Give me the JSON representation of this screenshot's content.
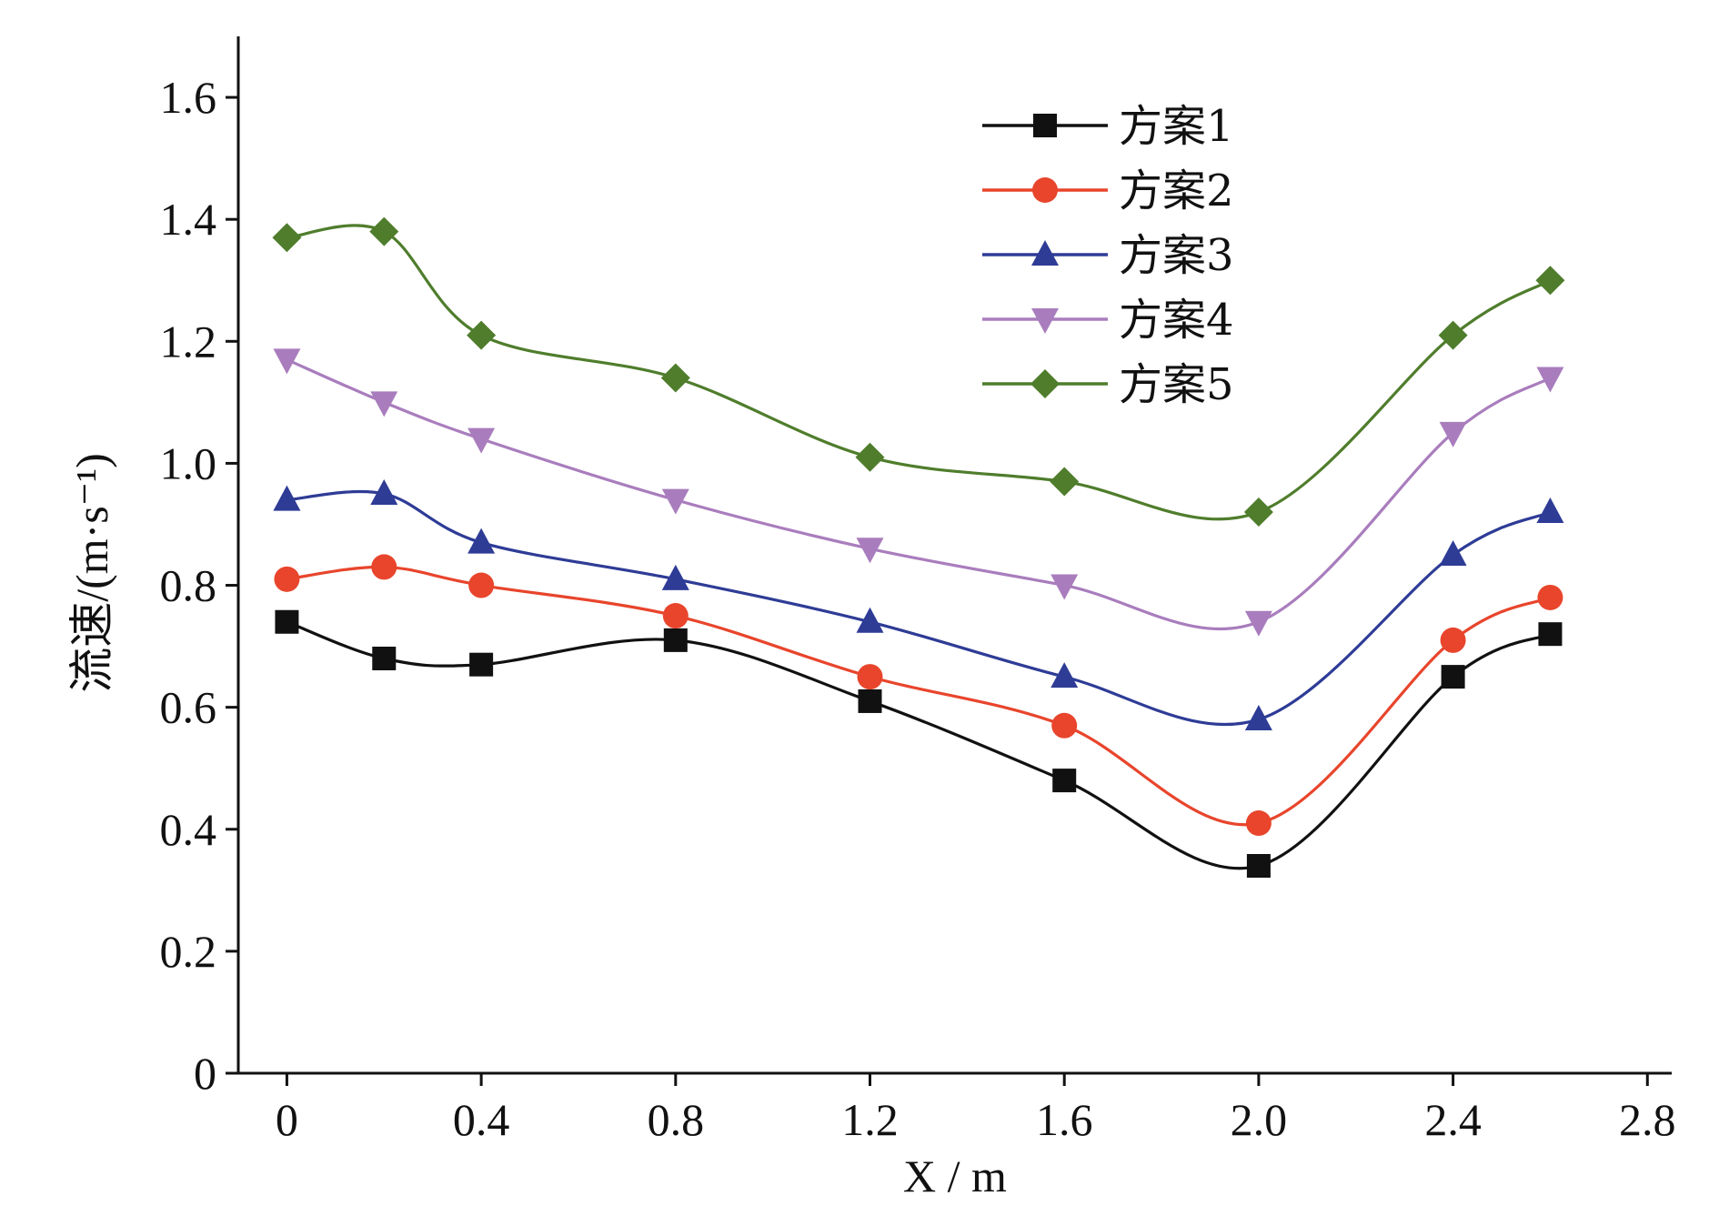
{
  "chart_data": {
    "type": "line",
    "title": "",
    "xlabel": "X / m",
    "ylabel": "流速/(m·s⁻¹)",
    "xlim": [
      -0.1,
      2.85
    ],
    "ylim": [
      0,
      1.7
    ],
    "xticks": [
      0,
      0.4,
      0.8,
      1.2,
      1.6,
      2.0,
      2.4,
      2.8
    ],
    "xtick_labels": [
      "0",
      "0.4",
      "0.8",
      "1.2",
      "1.6",
      "2.0",
      "2.4",
      "2.8"
    ],
    "yticks": [
      0,
      0.2,
      0.4,
      0.6,
      0.8,
      1.0,
      1.2,
      1.4,
      1.6
    ],
    "ytick_labels": [
      "0",
      "0.2",
      "0.4",
      "0.6",
      "0.8",
      "1.0",
      "1.2",
      "1.4",
      "1.6"
    ],
    "x": [
      0,
      0.2,
      0.4,
      0.8,
      1.2,
      1.6,
      2.0,
      2.4,
      2.6
    ],
    "legend_position": "top-right",
    "grid": false,
    "series": [
      {
        "name": "方案1",
        "marker": "square",
        "color": "#111111",
        "values": [
          0.74,
          0.68,
          0.67,
          0.71,
          0.61,
          0.48,
          0.34,
          0.65,
          0.72
        ]
      },
      {
        "name": "方案2",
        "marker": "circle",
        "color": "#e8452c",
        "values": [
          0.81,
          0.83,
          0.8,
          0.75,
          0.65,
          0.57,
          0.41,
          0.71,
          0.78
        ]
      },
      {
        "name": "方案3",
        "marker": "triangle-up",
        "color": "#2e3c96",
        "values": [
          0.94,
          0.95,
          0.87,
          0.81,
          0.74,
          0.65,
          0.58,
          0.85,
          0.92
        ]
      },
      {
        "name": "方案4",
        "marker": "triangle-down",
        "color": "#a97dbd",
        "values": [
          1.17,
          1.1,
          1.04,
          0.94,
          0.86,
          0.8,
          0.74,
          1.05,
          1.14
        ]
      },
      {
        "name": "方案5",
        "marker": "diamond",
        "color": "#4f7d2c",
        "values": [
          1.37,
          1.38,
          1.21,
          1.14,
          1.01,
          0.97,
          0.92,
          1.21,
          1.3
        ]
      }
    ]
  }
}
